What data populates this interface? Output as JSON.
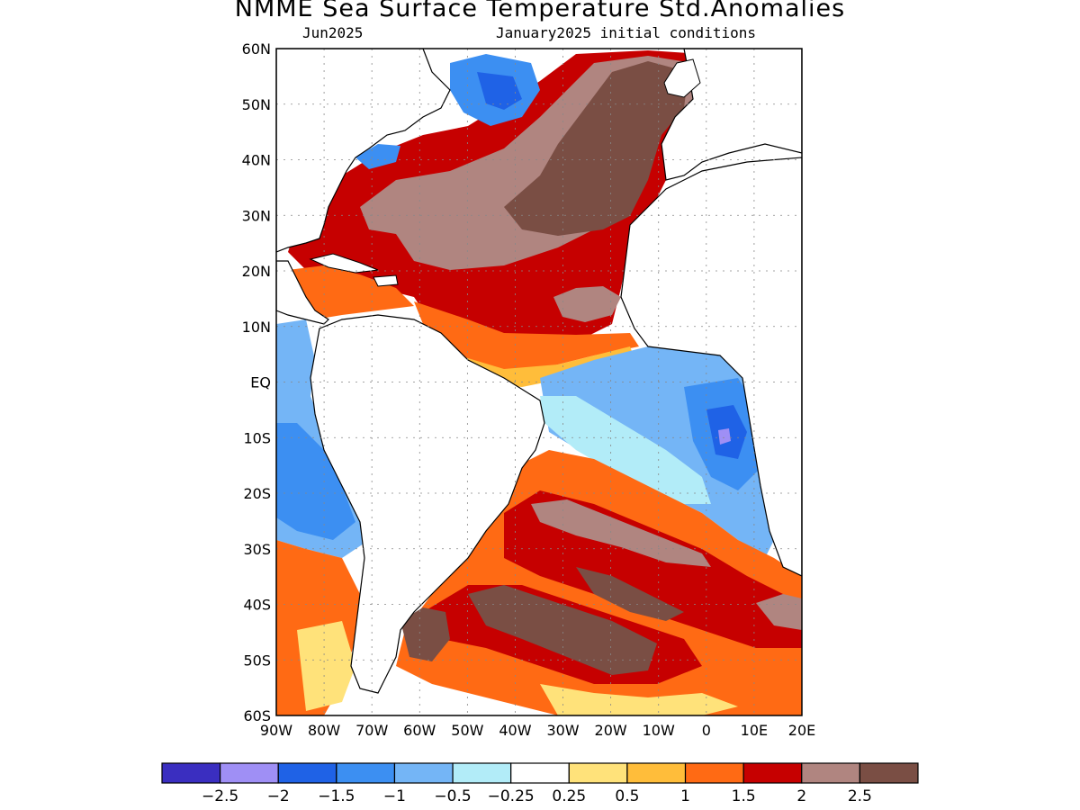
{
  "title": "NMME Sea Surface Temperature Std.Anomalies",
  "subtitle_left": "Jun2025",
  "subtitle_right": "January2025 initial conditions",
  "map": {
    "lon_range": [
      -90,
      20
    ],
    "lat_range": [
      -60,
      60
    ],
    "lat_labels": [
      "60N",
      "50N",
      "40N",
      "30N",
      "20N",
      "10N",
      "EQ",
      "10S",
      "20S",
      "30S",
      "40S",
      "50S",
      "60S"
    ],
    "lon_labels": [
      "90W",
      "80W",
      "70W",
      "60W",
      "50W",
      "40W",
      "30W",
      "20W",
      "10W",
      "0",
      "10E",
      "20E"
    ],
    "grid": true
  },
  "colorbar": {
    "colors": [
      "#3a2ec0",
      "#9f8ff5",
      "#1f62e6",
      "#3c8ff2",
      "#74b5f6",
      "#b2ecf8",
      "#ffffff",
      "#ffe27a",
      "#ffbd3a",
      "#ff6a14",
      "#c60000",
      "#b08580",
      "#7a4e44"
    ],
    "labels": [
      "-2.5",
      "-2",
      "-1.5",
      "-1",
      "-0.5",
      "-0.25",
      "0.25",
      "0.5",
      "1",
      "1.5",
      "2",
      "2.5"
    ]
  }
}
